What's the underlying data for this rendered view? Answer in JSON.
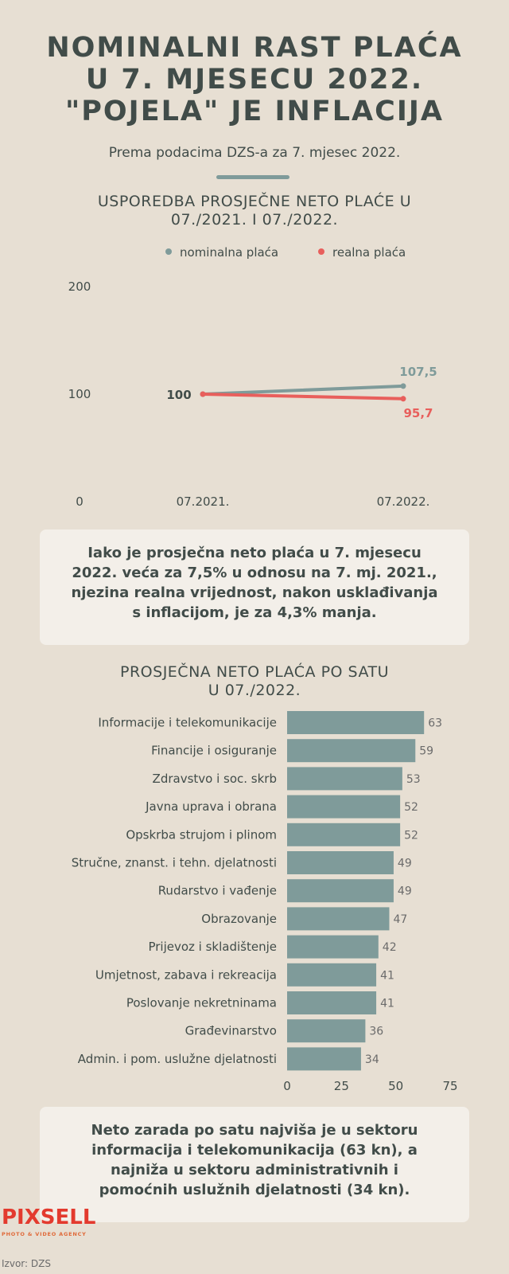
{
  "header": {
    "title_line1": "NOMINALNI RAST PLAĆA",
    "title_line2": "U 7. MJESECU 2022.",
    "title_line3": "\"POJELA\" JE INFLACIJA",
    "subtitle": "Prema podacima DZS-a za 7. mjesec 2022."
  },
  "colors": {
    "nominal": "#7f9b9a",
    "real": "#e85f5c",
    "bar": "#7f9b9a",
    "background": "#e7dfd3"
  },
  "line_chart": {
    "title_line1": "USPOREDBA PROSJEČNE NETO PLAĆE U",
    "title_line2": "07./2021. I 07./2022.",
    "legend_nominal": "nominalna plaća",
    "legend_real": "realna plaća"
  },
  "note1": {
    "line1": "Iako je prosječna neto plaća u 7. mjesecu",
    "line2": "2022. veća za 7,5% u odnosu na 7. mj. 2021.,",
    "line3": "njezina realna vrijednost, nakon usklađivanja",
    "line4": "s inflacijom, je za 4,3% manja."
  },
  "bar_chart": {
    "title_line1": "PROSJEČNA NETO PLAĆA PO SATU",
    "title_line2": "U 07./2022."
  },
  "note2": {
    "line1": "Neto zarada po satu najviša je u sektoru",
    "line2": "informacija i telekomunikacija (63 kn), a",
    "line3": "najniža u sektoru administrativnih i",
    "line4": "pomoćnih uslužnih djelatnosti (34 kn)."
  },
  "footer": {
    "logo": "PIXSELL",
    "logo_sub": "PHOTO & VIDEO AGENCY",
    "source": "Izvor: DZS"
  },
  "chart_data": [
    {
      "type": "line",
      "title": "USPOREDBA PROSJEČNE NETO PLAĆE U 07./2021. I 07./2022.",
      "categories": [
        "07.2021.",
        "07.2022."
      ],
      "ylim": [
        0,
        200
      ],
      "yticks": [
        "0",
        "100",
        "200"
      ],
      "series": [
        {
          "name": "nominalna plaća",
          "values": [
            100,
            107.5
          ],
          "labels": [
            "100",
            "107,5"
          ]
        },
        {
          "name": "realna plaća",
          "values": [
            100,
            95.7
          ],
          "labels": [
            "100",
            "95,7"
          ]
        }
      ],
      "legend": "top"
    },
    {
      "type": "bar",
      "orientation": "horizontal",
      "title": "PROSJEČNA NETO PLAĆA PO SATU U 07./2022.",
      "categories": [
        "Informacije i telekomunikacije",
        "Financije i osiguranje",
        "Zdravstvo i soc. skrb",
        "Javna uprava i obrana",
        "Opskrba strujom i plinom",
        "Stručne, znanst. i tehn. djelatnosti",
        "Rudarstvo i vađenje",
        "Obrazovanje",
        "Prijevoz i skladištenje",
        "Umjetnost, zabava i rekreacija",
        "Poslovanje nekretninama",
        "Građevinarstvo",
        "Admin. i pom. uslužne djelatnosti"
      ],
      "values": [
        63,
        59,
        53,
        52,
        52,
        49,
        49,
        47,
        42,
        41,
        41,
        36,
        34
      ],
      "xlim": [
        0,
        75
      ],
      "xticks": [
        "0",
        "25",
        "50",
        "75"
      ]
    }
  ]
}
